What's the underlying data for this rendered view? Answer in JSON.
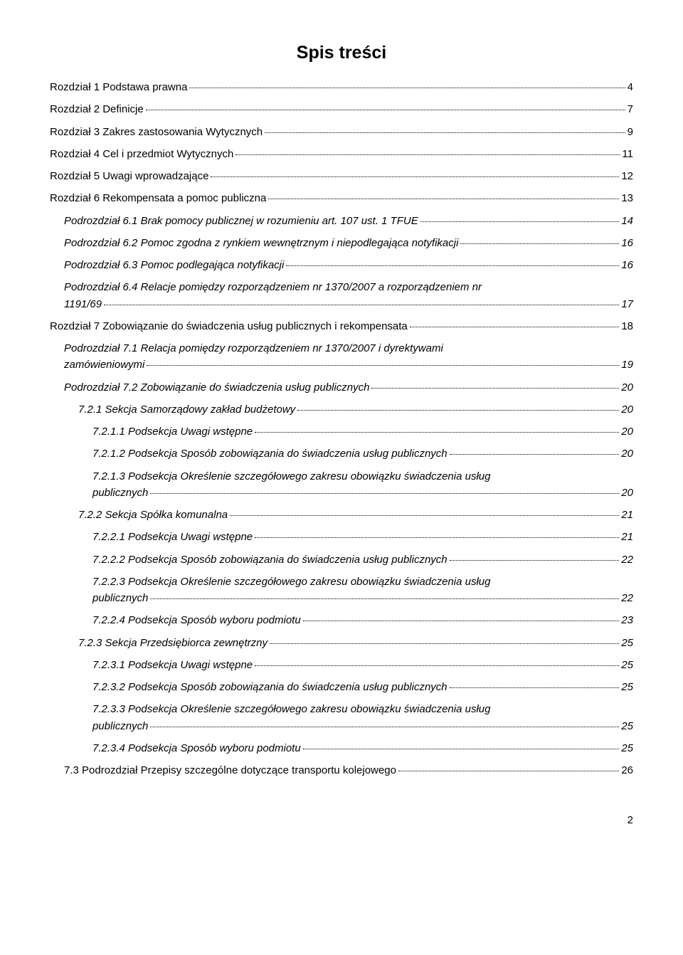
{
  "title": "Spis treści",
  "page_number": "2",
  "entries": [
    {
      "label": "Rozdział 1 Podstawa prawna",
      "page": "4",
      "indent": 0,
      "italic": false
    },
    {
      "label": "Rozdział 2 Definicje",
      "page": "7",
      "indent": 0,
      "italic": false
    },
    {
      "label": "Rozdział 3 Zakres zastosowania Wytycznych",
      "page": "9",
      "indent": 0,
      "italic": false
    },
    {
      "label": "Rozdział 4 Cel i przedmiot Wytycznych",
      "page": "11",
      "indent": 0,
      "italic": false
    },
    {
      "label": "Rozdział 5 Uwagi wprowadzające",
      "page": "12",
      "indent": 0,
      "italic": false
    },
    {
      "label": "Rozdział 6 Rekompensata a pomoc publiczna",
      "page": "13",
      "indent": 0,
      "italic": false
    },
    {
      "label": "Podrozdział 6.1 Brak pomocy publicznej w rozumieniu art. 107 ust. 1 TFUE",
      "page": "14",
      "indent": 1,
      "italic": true
    },
    {
      "label": "Podrozdział 6.2 Pomoc zgodna z rynkiem wewnętrznym i niepodlegająca notyfikacji",
      "page": "16",
      "indent": 1,
      "italic": true
    },
    {
      "label": "Podrozdział 6.3 Pomoc podlegająca notyfikacji",
      "page": "16",
      "indent": 1,
      "italic": true
    },
    {
      "label_pre": "Podrozdział 6.4 Relacje pomiędzy rozporządzeniem nr 1370/2007 a rozporządzeniem nr",
      "label_last": "1191/69",
      "page": "17",
      "indent": 1,
      "italic": true,
      "multiline": true
    },
    {
      "label": "Rozdział 7 Zobowiązanie do świadczenia usług publicznych i rekompensata",
      "page": "18",
      "indent": 0,
      "italic": false
    },
    {
      "label_pre": "Podrozdział 7.1 Relacja pomiędzy rozporządzeniem nr 1370/2007 i dyrektywami",
      "label_last": "zamówieniowymi",
      "page": "19",
      "indent": 1,
      "italic": true,
      "multiline": true
    },
    {
      "label": "Podrozdział 7.2 Zobowiązanie do świadczenia usług publicznych",
      "page": "20",
      "indent": 1,
      "italic": true
    },
    {
      "label": "7.2.1 Sekcja Samorządowy zakład budżetowy",
      "page": "20",
      "indent": 2,
      "italic": true
    },
    {
      "label": "7.2.1.1 Podsekcja Uwagi wstępne",
      "page": "20",
      "indent": 3,
      "italic": true
    },
    {
      "label": "7.2.1.2 Podsekcja Sposób zobowiązania do świadczenia usług publicznych",
      "page": "20",
      "indent": 3,
      "italic": true
    },
    {
      "label_pre": "7.2.1.3 Podsekcja Określenie szczegółowego zakresu obowiązku świadczenia usług",
      "label_last": "publicznych",
      "page": "20",
      "indent": 3,
      "italic": true,
      "multiline": true
    },
    {
      "label": "7.2.2 Sekcja Spółka komunalna",
      "page": "21",
      "indent": 2,
      "italic": true
    },
    {
      "label": "7.2.2.1 Podsekcja Uwagi wstępne",
      "page": "21",
      "indent": 3,
      "italic": true
    },
    {
      "label": "7.2.2.2 Podsekcja Sposób zobowiązania do świadczenia usług publicznych",
      "page": "22",
      "indent": 3,
      "italic": true
    },
    {
      "label_pre": "7.2.2.3 Podsekcja Określenie szczegółowego zakresu obowiązku świadczenia usług",
      "label_last": "publicznych",
      "page": "22",
      "indent": 3,
      "italic": true,
      "multiline": true
    },
    {
      "label": "7.2.2.4 Podsekcja Sposób wyboru podmiotu",
      "page": "23",
      "indent": 3,
      "italic": true
    },
    {
      "label": "7.2.3 Sekcja Przedsiębiorca zewnętrzny",
      "page": "25",
      "indent": 2,
      "italic": true
    },
    {
      "label": "7.2.3.1 Podsekcja Uwagi wstępne",
      "page": "25",
      "indent": 3,
      "italic": true
    },
    {
      "label": "7.2.3.2 Podsekcja Sposób zobowiązania do świadczenia usług publicznych",
      "page": "25",
      "indent": 3,
      "italic": true
    },
    {
      "label_pre": "7.2.3.3 Podsekcja Określenie szczegółowego zakresu obowiązku świadczenia usług",
      "label_last": "publicznych",
      "page": "25",
      "indent": 3,
      "italic": true,
      "multiline": true
    },
    {
      "label": "7.2.3.4 Podsekcja Sposób wyboru podmiotu",
      "page": "25",
      "indent": 3,
      "italic": true
    },
    {
      "label": "7.3 Podrozdział Przepisy szczególne dotyczące transportu kolejowego",
      "page": "26",
      "indent": 1,
      "italic": false
    }
  ]
}
